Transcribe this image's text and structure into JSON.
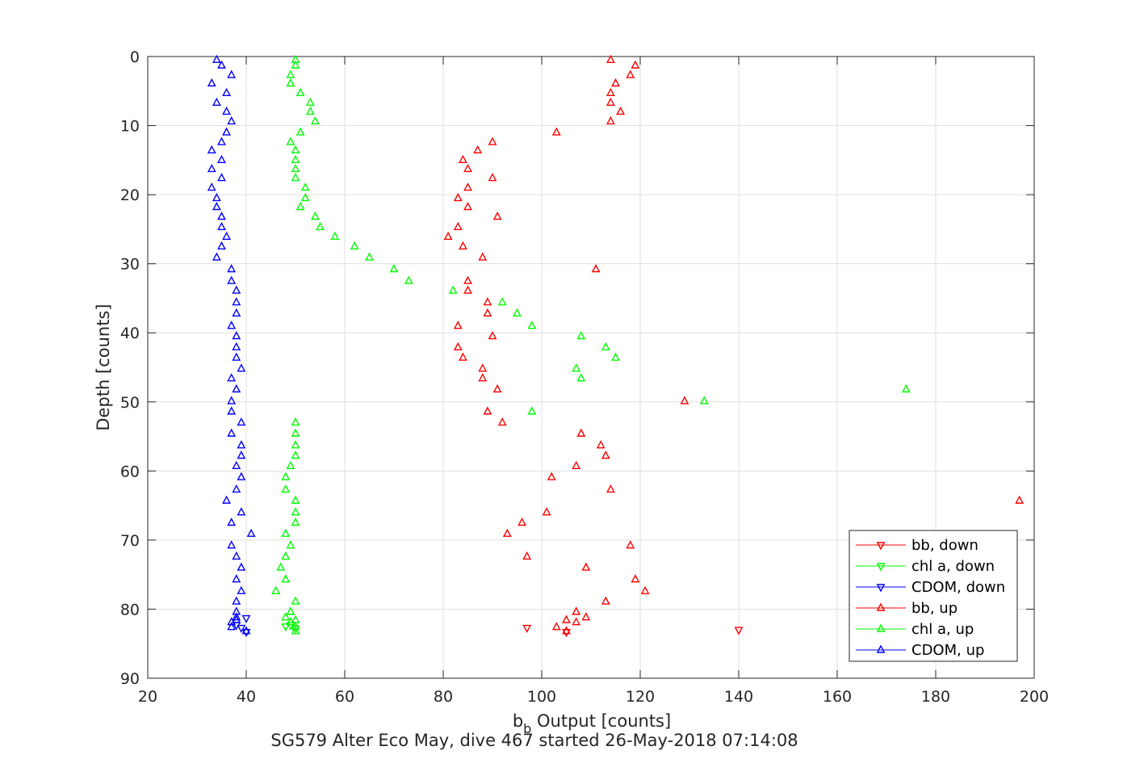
{
  "chart_data": {
    "type": "scatter",
    "xlabel": {
      "base": "b",
      "sub": "b",
      "rest": " Output [counts]"
    },
    "ylabel": "Depth [counts]",
    "subtitle": "SG579 Alter Eco May, dive 467 started 26-May-2018 07:14:08",
    "xlim": [
      20,
      200
    ],
    "ylim": [
      0,
      90
    ],
    "y_reversed": true,
    "xticks": [
      20,
      40,
      60,
      80,
      100,
      120,
      140,
      160,
      180,
      200
    ],
    "yticks": [
      0,
      10,
      20,
      30,
      40,
      50,
      60,
      70,
      80,
      90
    ],
    "grid": true,
    "legend_position": "bottom-right",
    "series": [
      {
        "name": "bb, down",
        "color": "#ff0000",
        "marker": "triangle-down",
        "x": [
          97,
          140,
          105
        ],
        "y": [
          82.7,
          83.0,
          83.3
        ]
      },
      {
        "name": "chl a, down",
        "color": "#00ff00",
        "marker": "triangle-down",
        "x": [
          49,
          50,
          48
        ],
        "y": [
          82.3,
          82.8,
          82.5
        ]
      },
      {
        "name": "CDOM, down",
        "color": "#0000ff",
        "marker": "triangle-down",
        "x": [
          40,
          39,
          40,
          38
        ],
        "y": [
          81.3,
          82.7,
          83.3,
          82.3
        ]
      },
      {
        "name": "bb, up",
        "color": "#ff0000",
        "marker": "triangle-up",
        "x": [
          114,
          119,
          118,
          115,
          114,
          114,
          116,
          114,
          103,
          90,
          87,
          84,
          85,
          90,
          85,
          83,
          85,
          91,
          83,
          81,
          84,
          88,
          111,
          85,
          85,
          89,
          89,
          83,
          90,
          83,
          84,
          88,
          88,
          91,
          129,
          89,
          92,
          108,
          112,
          113,
          107,
          102,
          114,
          197,
          101,
          96,
          93,
          118,
          97,
          109,
          119,
          121,
          113,
          107,
          109,
          107,
          105,
          103,
          105
        ],
        "y": [
          0.5,
          1.3,
          2.7,
          3.9,
          5.3,
          6.7,
          8.0,
          9.4,
          11.0,
          12.4,
          13.6,
          15.0,
          16.3,
          17.6,
          19.0,
          20.5,
          21.8,
          23.2,
          24.7,
          26.1,
          27.5,
          29.1,
          30.8,
          32.5,
          33.9,
          35.6,
          37.2,
          39.0,
          40.5,
          42.1,
          43.6,
          45.2,
          46.6,
          48.2,
          49.9,
          51.4,
          53.0,
          54.6,
          56.3,
          57.8,
          59.3,
          60.9,
          62.7,
          64.3,
          66.0,
          67.5,
          69.1,
          70.8,
          72.4,
          74.0,
          75.7,
          77.4,
          78.9,
          80.4,
          81.2,
          81.9,
          81.6,
          82.6,
          83.2
        ]
      },
      {
        "name": "chl a, up",
        "color": "#00ff00",
        "marker": "triangle-up",
        "x": [
          50,
          50,
          49,
          49,
          51,
          53,
          53,
          54,
          51,
          49,
          50,
          50,
          50,
          50,
          52,
          52,
          51,
          54,
          55,
          58,
          62,
          65,
          70,
          73,
          82,
          92,
          95,
          98,
          108,
          113,
          115,
          107,
          108,
          174,
          133,
          98,
          50,
          50,
          50,
          50,
          49,
          48,
          48,
          50,
          50,
          50,
          48,
          49,
          48,
          47,
          48,
          46,
          50,
          49,
          48,
          49,
          50,
          50,
          50
        ],
        "y": [
          0.5,
          1.3,
          2.7,
          3.9,
          5.3,
          6.7,
          8.0,
          9.4,
          11.0,
          12.4,
          13.6,
          15.0,
          16.3,
          17.6,
          19.0,
          20.5,
          21.8,
          23.2,
          24.7,
          26.1,
          27.5,
          29.1,
          30.8,
          32.5,
          33.9,
          35.6,
          37.2,
          39.0,
          40.5,
          42.1,
          43.6,
          45.2,
          46.6,
          48.2,
          49.9,
          51.4,
          53.0,
          54.6,
          56.3,
          57.8,
          59.3,
          60.9,
          62.7,
          64.3,
          66.0,
          67.5,
          69.1,
          70.8,
          72.4,
          74.0,
          75.7,
          77.4,
          78.9,
          80.4,
          81.2,
          81.9,
          81.6,
          82.6,
          83.2
        ]
      },
      {
        "name": "CDOM, up",
        "color": "#0000ff",
        "marker": "triangle-up",
        "x": [
          34,
          35,
          37,
          33,
          36,
          34,
          36,
          37,
          36,
          35,
          33,
          35,
          33,
          35,
          33,
          34,
          34,
          35,
          35,
          36,
          35,
          34,
          37,
          37,
          38,
          38,
          38,
          37,
          38,
          38,
          38,
          39,
          37,
          38,
          37,
          37,
          39,
          37,
          39,
          39,
          38,
          39,
          38,
          36,
          39,
          37,
          41,
          37,
          38,
          39,
          38,
          39,
          38,
          38,
          38,
          37,
          38,
          37,
          40
        ],
        "y": [
          0.5,
          1.3,
          2.7,
          3.9,
          5.3,
          6.7,
          8.0,
          9.4,
          11.0,
          12.4,
          13.6,
          15.0,
          16.3,
          17.6,
          19.0,
          20.5,
          21.8,
          23.2,
          24.7,
          26.1,
          27.5,
          29.1,
          30.8,
          32.5,
          33.9,
          35.6,
          37.2,
          39.0,
          40.5,
          42.1,
          43.6,
          45.2,
          46.6,
          48.2,
          49.9,
          51.4,
          53.0,
          54.6,
          56.3,
          57.8,
          59.3,
          60.9,
          62.7,
          64.3,
          66.0,
          67.5,
          69.1,
          70.8,
          72.4,
          74.0,
          75.7,
          77.4,
          78.9,
          80.4,
          81.2,
          81.9,
          81.6,
          82.6,
          83.2
        ]
      }
    ]
  }
}
